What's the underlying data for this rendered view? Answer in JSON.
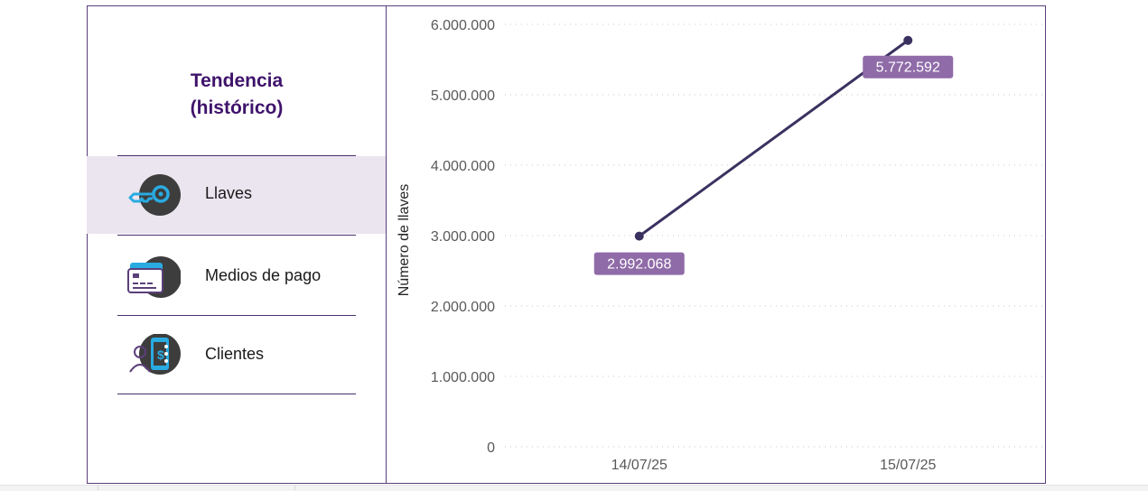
{
  "sidebar": {
    "title_line1": "Tendencia",
    "title_line2": "(histórico)",
    "items": [
      {
        "label": "Llaves",
        "icon": "key-icon",
        "active": true
      },
      {
        "label": "Medios de pago",
        "icon": "credit-card-icon",
        "active": false
      },
      {
        "label": "Clientes",
        "icon": "clients-icon",
        "active": false
      }
    ]
  },
  "colors": {
    "accent": "#3f136b",
    "line": "#3b3160",
    "label_bg": "#8f6ba8",
    "active_bg": "#ebe5f0",
    "icon_blue": "#29abe2",
    "icon_dark": "#3d3d3d"
  },
  "chart_data": {
    "type": "line",
    "x": [
      "14/07/25",
      "15/07/25"
    ],
    "series": [
      {
        "values": [
          2992068,
          5772592
        ],
        "labels": [
          "2.992.068",
          "5.772.592"
        ]
      }
    ],
    "ylabel": "Número de llaves",
    "xlabel": "",
    "ylim": [
      0,
      6000000
    ],
    "yticks": [
      0,
      1000000,
      2000000,
      3000000,
      4000000,
      5000000,
      6000000
    ],
    "ytick_labels": [
      "0",
      "1.000.000",
      "2.000.000",
      "3.000.000",
      "4.000.000",
      "5.000.000",
      "6.000.000"
    ],
    "grid": true,
    "legend": "none"
  }
}
